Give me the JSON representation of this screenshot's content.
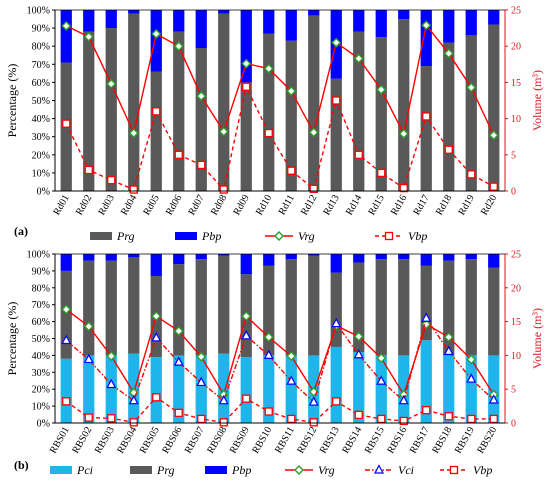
{
  "chart_data": [
    {
      "type": "bar",
      "panel_label": "(a)",
      "ylabel_left": "Percentage (%)",
      "ylabel_right": "Volume (m³)",
      "ylim_left": [
        0,
        100
      ],
      "ylim_right": [
        0,
        25
      ],
      "yticks_left": [
        "0%",
        "10%",
        "20%",
        "30%",
        "40%",
        "50%",
        "60%",
        "70%",
        "80%",
        "90%",
        "100%"
      ],
      "yticks_right": [
        "0",
        "5",
        "10",
        "15",
        "20",
        "25"
      ],
      "categories": [
        "Rd01",
        "Rd02",
        "Rd03",
        "Rd04",
        "Rd05",
        "Rd06",
        "Rd07",
        "Rd08",
        "Rd09",
        "Rd10",
        "Rd11",
        "Rd12",
        "Rd13",
        "Rd14",
        "Rd15",
        "Rd16",
        "Rd17",
        "Rd18",
        "Rd19",
        "Rd20"
      ],
      "series": [
        {
          "name": "Prg",
          "kind": "stacked-bar",
          "color": "#595959",
          "values": [
            71,
            88,
            90,
            98,
            66,
            88,
            79,
            98,
            60,
            87,
            83,
            97,
            62,
            88,
            85,
            95,
            69,
            82,
            86,
            92
          ]
        },
        {
          "name": "Pbp",
          "kind": "stacked-bar",
          "color": "#0000ff",
          "values": [
            29,
            12,
            10,
            2,
            34,
            12,
            21,
            2,
            40,
            13,
            17,
            3,
            38,
            12,
            15,
            5,
            31,
            18,
            14,
            8
          ]
        },
        {
          "name": "Vrg",
          "kind": "line",
          "color": "#ff0000",
          "marker": "diamond-green",
          "values": [
            22.8,
            21.3,
            14.8,
            8.0,
            21.7,
            20.0,
            13.1,
            8.2,
            17.6,
            16.9,
            13.8,
            8.1,
            20.5,
            18.3,
            14.0,
            7.9,
            22.9,
            19.0,
            14.3,
            7.7
          ]
        },
        {
          "name": "Vbp",
          "kind": "dashed-line",
          "color": "#ff0000",
          "marker": "square-open",
          "values": [
            9.3,
            2.9,
            1.5,
            0.2,
            11.0,
            5.0,
            3.6,
            0.2,
            14.4,
            8.0,
            2.8,
            0.3,
            12.5,
            5.0,
            2.5,
            0.4,
            10.3,
            5.7,
            2.3,
            0.6
          ]
        }
      ]
    },
    {
      "type": "bar",
      "panel_label": "(b)",
      "ylabel_left": "Percentage (%)",
      "ylabel_right": "Volume (m³)",
      "ylim_left": [
        0,
        100
      ],
      "ylim_right": [
        0,
        25
      ],
      "yticks_left": [
        "0%",
        "10%",
        "20%",
        "30%",
        "40%",
        "50%",
        "60%",
        "70%",
        "80%",
        "90%",
        "100%"
      ],
      "yticks_right": [
        "0",
        "5",
        "10",
        "15",
        "20",
        "25"
      ],
      "categories": [
        "RBS01",
        "RBS02",
        "RBS03",
        "RBS04",
        "RBS05",
        "RBS06",
        "RBS07",
        "RBS08",
        "RBS09",
        "RBS10",
        "RBS11",
        "RBS12",
        "RBS13",
        "RBS14",
        "RBS15",
        "RBS16",
        "RBS17",
        "RBS18",
        "RBS19",
        "RBS20"
      ],
      "series": [
        {
          "name": "Pci",
          "kind": "stacked-bar",
          "color": "#1fb4ea",
          "values": [
            38,
            40,
            40,
            41,
            39,
            40,
            40,
            41,
            39,
            40,
            40,
            40,
            45,
            42,
            40,
            40,
            49,
            40,
            40,
            40
          ]
        },
        {
          "name": "Prg",
          "kind": "stacked-bar",
          "color": "#595959",
          "values": [
            52,
            56,
            56,
            57,
            48,
            54,
            57,
            58,
            49,
            53,
            57,
            59,
            44,
            53,
            57,
            57,
            44,
            56,
            57,
            52
          ]
        },
        {
          "name": "Pbp",
          "kind": "stacked-bar",
          "color": "#0000ff",
          "values": [
            10,
            4,
            4,
            2,
            13,
            6,
            3,
            1,
            12,
            7,
            3,
            1,
            11,
            5,
            3,
            3,
            7,
            4,
            3,
            8
          ]
        },
        {
          "name": "Vrg",
          "kind": "line",
          "color": "#ff0000",
          "marker": "diamond-green",
          "values": [
            16.8,
            14.3,
            9.9,
            4.5,
            15.8,
            13.6,
            9.8,
            4.2,
            15.8,
            12.7,
            9.9,
            4.6,
            14.4,
            12.8,
            9.6,
            4.2,
            14.6,
            12.7,
            9.4,
            4.2
          ]
        },
        {
          "name": "Vci",
          "kind": "dash-dot-line",
          "color": "#ff0000",
          "marker": "triangle-blue",
          "values": [
            12.2,
            9.4,
            5.7,
            3.3,
            12.6,
            9.0,
            6.0,
            3.3,
            12.9,
            10.0,
            6.2,
            3.1,
            14.7,
            10.1,
            6.2,
            3.3,
            15.5,
            10.6,
            6.5,
            3.4
          ]
        },
        {
          "name": "Vbp",
          "kind": "dashed-line",
          "color": "#ff0000",
          "marker": "square-open",
          "values": [
            3.2,
            0.8,
            0.7,
            0.1,
            3.8,
            1.5,
            0.6,
            0.1,
            3.6,
            1.7,
            0.6,
            0.1,
            3.2,
            1.2,
            0.6,
            0.3,
            1.9,
            1.0,
            0.6,
            0.6
          ]
        }
      ]
    }
  ],
  "legends": {
    "a": [
      {
        "name": "Prg",
        "style": "swatch",
        "color": "#595959"
      },
      {
        "name": "Pbp",
        "style": "swatch",
        "color": "#0000ff"
      },
      {
        "name": "Vrg",
        "style": "line-diamond"
      },
      {
        "name": "Vbp",
        "style": "dash-square"
      }
    ],
    "b": [
      {
        "name": "Pci",
        "style": "swatch",
        "color": "#1fb4ea"
      },
      {
        "name": "Prg",
        "style": "swatch",
        "color": "#595959"
      },
      {
        "name": "Pbp",
        "style": "swatch",
        "color": "#0000ff"
      },
      {
        "name": "Vrg",
        "style": "line-diamond"
      },
      {
        "name": "Vci",
        "style": "dashdot-triangle"
      },
      {
        "name": "Vbp",
        "style": "dash-square"
      }
    ]
  },
  "colors": {
    "axis_red": "#e0141e",
    "line_red": "#ff0000",
    "marker_green": "#2ca02c",
    "marker_blue": "#0000ff"
  }
}
